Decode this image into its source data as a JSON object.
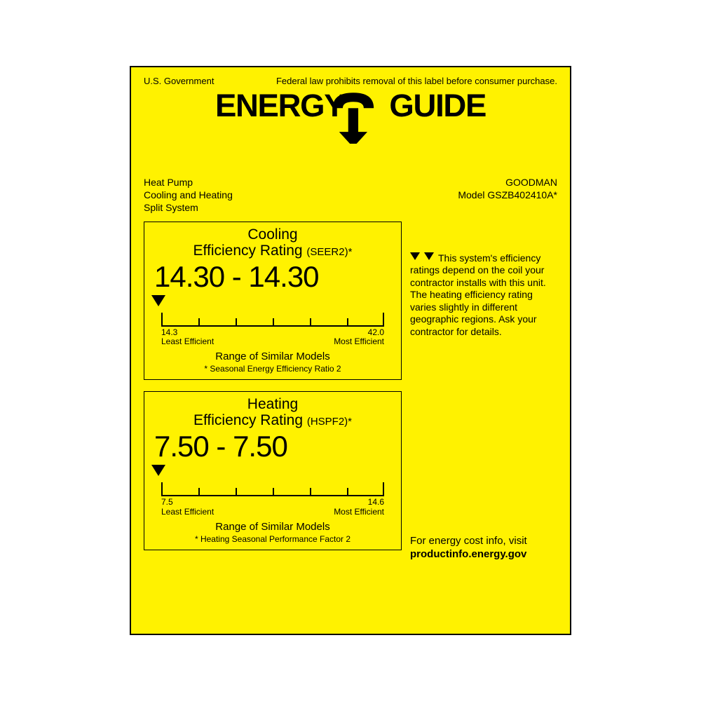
{
  "colors": {
    "bg": "#fff200",
    "fg": "#000000",
    "page": "#ffffff"
  },
  "header": {
    "gov": "U.S. Government",
    "law": "Federal law prohibits removal of this label before consumer purchase.",
    "logo_left": "ENERGY",
    "logo_right": "GUIDE"
  },
  "meta": {
    "left1": "Heat Pump",
    "left2": "Cooling and Heating",
    "left3": "Split System",
    "brand": "GOODMAN",
    "model": "Model GSZB402410A*"
  },
  "cooling": {
    "title1": "Cooling",
    "title2": "Efficiency Rating",
    "metric": "(SEER2)*",
    "range_text": "14.30 - 14.30",
    "scale_min": "14.3",
    "scale_max": "42.0",
    "min_label": "Least Efficient",
    "max_label": "Most Efficient",
    "caption": "Range of Similar Models",
    "note": "* Seasonal Energy Efficiency Ratio 2",
    "marker_pos_pct": 0,
    "ticks_pct": [
      16.6,
      33.3,
      50,
      66.6,
      83.3
    ]
  },
  "heating": {
    "title1": "Heating",
    "title2": "Efficiency Rating",
    "metric": "(HSPF2)*",
    "range_text": "7.50 - 7.50",
    "scale_min": "7.5",
    "scale_max": "14.6",
    "min_label": "Least Efficient",
    "max_label": "Most Efficient",
    "caption": "Range of Similar Models",
    "note": "* Heating Seasonal Performance Factor 2",
    "marker_pos_pct": 0,
    "ticks_pct": [
      16.6,
      33.3,
      50,
      66.6,
      83.3
    ]
  },
  "side": {
    "note": "This system's efficiency ratings depend on the coil your contractor installs with this unit.  The heating efficiency rating varies slightly in different geographic regions.  Ask your contractor for details.",
    "link1": "For energy cost info, visit",
    "link2": "productinfo.energy.gov"
  }
}
